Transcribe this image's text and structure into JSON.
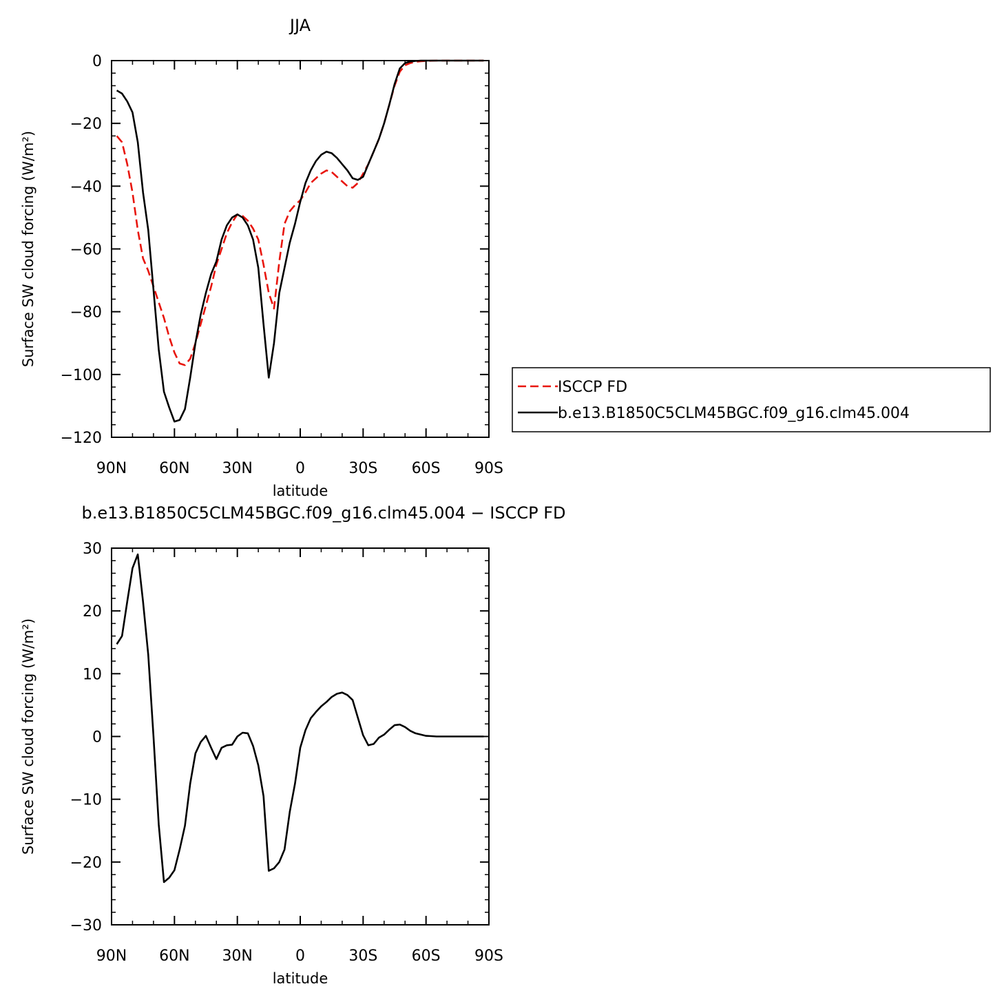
{
  "chart_data": [
    {
      "type": "line",
      "title": "JJA",
      "xlabel": "latitude",
      "ylabel": "Surface SW cloud forcing (W/m²)",
      "xlim": [
        90,
        -90
      ],
      "ylim": [
        -120,
        0
      ],
      "x_ticks": [
        90,
        60,
        30,
        0,
        -30,
        -60,
        -90
      ],
      "x_tick_labels": [
        "90N",
        "60N",
        "30N",
        "0",
        "30S",
        "60S",
        "90S"
      ],
      "y_ticks": [
        0,
        -20,
        -40,
        -60,
        -80,
        -100,
        -120
      ],
      "y_tick_labels": [
        "0",
        "−20",
        "−40",
        "−60",
        "−80",
        "−100",
        "−120"
      ],
      "legend_position": "right",
      "series": [
        {
          "name": "ISCCP FD",
          "color": "#e8150c",
          "style": "dashed",
          "x": [
            87.5,
            85,
            82.5,
            80,
            77.5,
            75,
            72.5,
            70,
            67.5,
            65,
            62.5,
            60,
            57.5,
            55,
            52.5,
            50,
            47.5,
            45,
            42.5,
            40,
            37.5,
            35,
            32.5,
            30,
            27.5,
            25,
            22.5,
            20,
            17.5,
            15,
            12.5,
            10,
            7.5,
            5,
            2.5,
            0,
            -2.5,
            -5,
            -7.5,
            -10,
            -12.5,
            -15,
            -17.5,
            -20,
            -22.5,
            -25,
            -27.5,
            -30,
            -32.5,
            -35,
            -37.5,
            -40,
            -42.5,
            -45,
            -47.5,
            -50,
            -52.5,
            -55,
            -57.5,
            -60,
            -62.5,
            -65,
            -67.5,
            -70,
            -72.5,
            -75,
            -77.5,
            -80,
            -82.5,
            -85,
            -87.5
          ],
          "values": [
            -24,
            -26,
            -33,
            -42,
            -54,
            -63,
            -67,
            -72,
            -77,
            -82,
            -88,
            -93,
            -96.5,
            -97,
            -95,
            -90,
            -84,
            -78,
            -72,
            -65,
            -60,
            -55,
            -51.5,
            -49,
            -49.5,
            -51,
            -53.5,
            -57,
            -65,
            -74,
            -79,
            -64,
            -52,
            -48,
            -46,
            -44.5,
            -42,
            -39,
            -37.5,
            -36,
            -35,
            -35.5,
            -37,
            -38.5,
            -40,
            -40.5,
            -39,
            -36,
            -33,
            -29,
            -25,
            -20,
            -14,
            -8,
            -3.5,
            -1.5,
            -0.8,
            -0.4,
            -0.2,
            -0.1,
            -0.05,
            0,
            0,
            0,
            0,
            0,
            0,
            0,
            0,
            0,
            0
          ]
        },
        {
          "name": "b.e13.B1850C5CLM45BGC.f09_g16.clm45.004",
          "color": "#000000",
          "style": "solid",
          "x": [
            87.5,
            85,
            82.5,
            80,
            77.5,
            75,
            72.5,
            70,
            67.5,
            65,
            62.5,
            60,
            57.5,
            55,
            52.5,
            50,
            47.5,
            45,
            42.5,
            40,
            37.5,
            35,
            32.5,
            30,
            27.5,
            25,
            22.5,
            20,
            17.5,
            15,
            12.5,
            10,
            7.5,
            5,
            2.5,
            0,
            -2.5,
            -5,
            -7.5,
            -10,
            -12.5,
            -15,
            -17.5,
            -20,
            -22.5,
            -25,
            -27.5,
            -30,
            -32.5,
            -35,
            -37.5,
            -40,
            -42.5,
            -45,
            -47.5,
            -50,
            -52.5,
            -55,
            -57.5,
            -60,
            -62.5,
            -65,
            -67.5,
            -70,
            -72.5,
            -75,
            -77.5,
            -80,
            -82.5,
            -85,
            -87.5
          ],
          "values": [
            -9.5,
            -10.5,
            -13,
            -16.5,
            -26,
            -42,
            -54,
            -73,
            -92,
            -105.5,
            -110.5,
            -115,
            -114.5,
            -111,
            -101,
            -90,
            -81,
            -74,
            -68,
            -64,
            -57,
            -52.5,
            -50,
            -49,
            -50,
            -52.5,
            -57,
            -66,
            -84,
            -101,
            -90,
            -74,
            -66,
            -58,
            -52,
            -45,
            -39,
            -35,
            -32,
            -30,
            -29,
            -29.5,
            -31,
            -33,
            -35,
            -37.5,
            -38,
            -37,
            -33,
            -29,
            -25,
            -20,
            -14,
            -7.5,
            -2.5,
            -0.8,
            -0.3,
            -0.1,
            0,
            0,
            0,
            0,
            0,
            0,
            0,
            0,
            0,
            0,
            0,
            0,
            0
          ]
        }
      ]
    },
    {
      "type": "line",
      "title": "b.e13.B1850C5CLM45BGC.f09_g16.clm45.004 − ISCCP FD",
      "xlabel": "latitude",
      "ylabel": "Surface SW cloud forcing (W/m²)",
      "xlim": [
        90,
        -90
      ],
      "ylim": [
        -30,
        30
      ],
      "x_ticks": [
        90,
        60,
        30,
        0,
        -30,
        -60,
        -90
      ],
      "x_tick_labels": [
        "90N",
        "60N",
        "30N",
        "0",
        "30S",
        "60S",
        "90S"
      ],
      "y_ticks": [
        30,
        20,
        10,
        0,
        -10,
        -20,
        -30
      ],
      "y_tick_labels": [
        "30",
        "20",
        "10",
        "0",
        "−10",
        "−20",
        "−30"
      ],
      "series": [
        {
          "color": "#000000",
          "style": "solid",
          "x": [
            87.5,
            85,
            82.5,
            80,
            77.5,
            75,
            72.5,
            70,
            67.5,
            65,
            62.5,
            60,
            57.5,
            55,
            52.5,
            50,
            47.5,
            45,
            42.5,
            40,
            37.5,
            35,
            32.5,
            30,
            27.5,
            25,
            22.5,
            20,
            17.5,
            15,
            12.5,
            10,
            7.5,
            5,
            2.5,
            0,
            -2.5,
            -5,
            -7.5,
            -10,
            -12.5,
            -15,
            -17.5,
            -20,
            -22.5,
            -25,
            -27.5,
            -30,
            -32.5,
            -35,
            -37.5,
            -40,
            -42.5,
            -45,
            -47.5,
            -50,
            -52.5,
            -55,
            -57.5,
            -60,
            -62.5,
            -65,
            -67.5,
            -70,
            -72.5,
            -75,
            -77.5,
            -80,
            -82.5,
            -85,
            -87.5
          ],
          "values": [
            14.7,
            16,
            21.5,
            26.8,
            29,
            21.5,
            13,
            0,
            -14,
            -23.2,
            -22.5,
            -21.3,
            -18,
            -14.2,
            -7.5,
            -2.7,
            -0.9,
            0.1,
            -1.8,
            -3.6,
            -1.8,
            -1.4,
            -1.3,
            0,
            0.6,
            0.5,
            -1.5,
            -4.6,
            -9.5,
            -21.4,
            -21,
            -20,
            -18,
            -12,
            -7.5,
            -1.8,
            1,
            2.9,
            3.9,
            4.8,
            5.5,
            6.3,
            6.8,
            7,
            6.6,
            5.8,
            3,
            0.2,
            -1.4,
            -1.2,
            -0.2,
            0.3,
            1.1,
            1.8,
            1.9,
            1.5,
            0.9,
            0.5,
            0.3,
            0.1,
            0.05,
            0,
            0,
            0,
            0,
            0,
            0,
            0,
            0,
            0,
            0
          ]
        }
      ]
    }
  ]
}
